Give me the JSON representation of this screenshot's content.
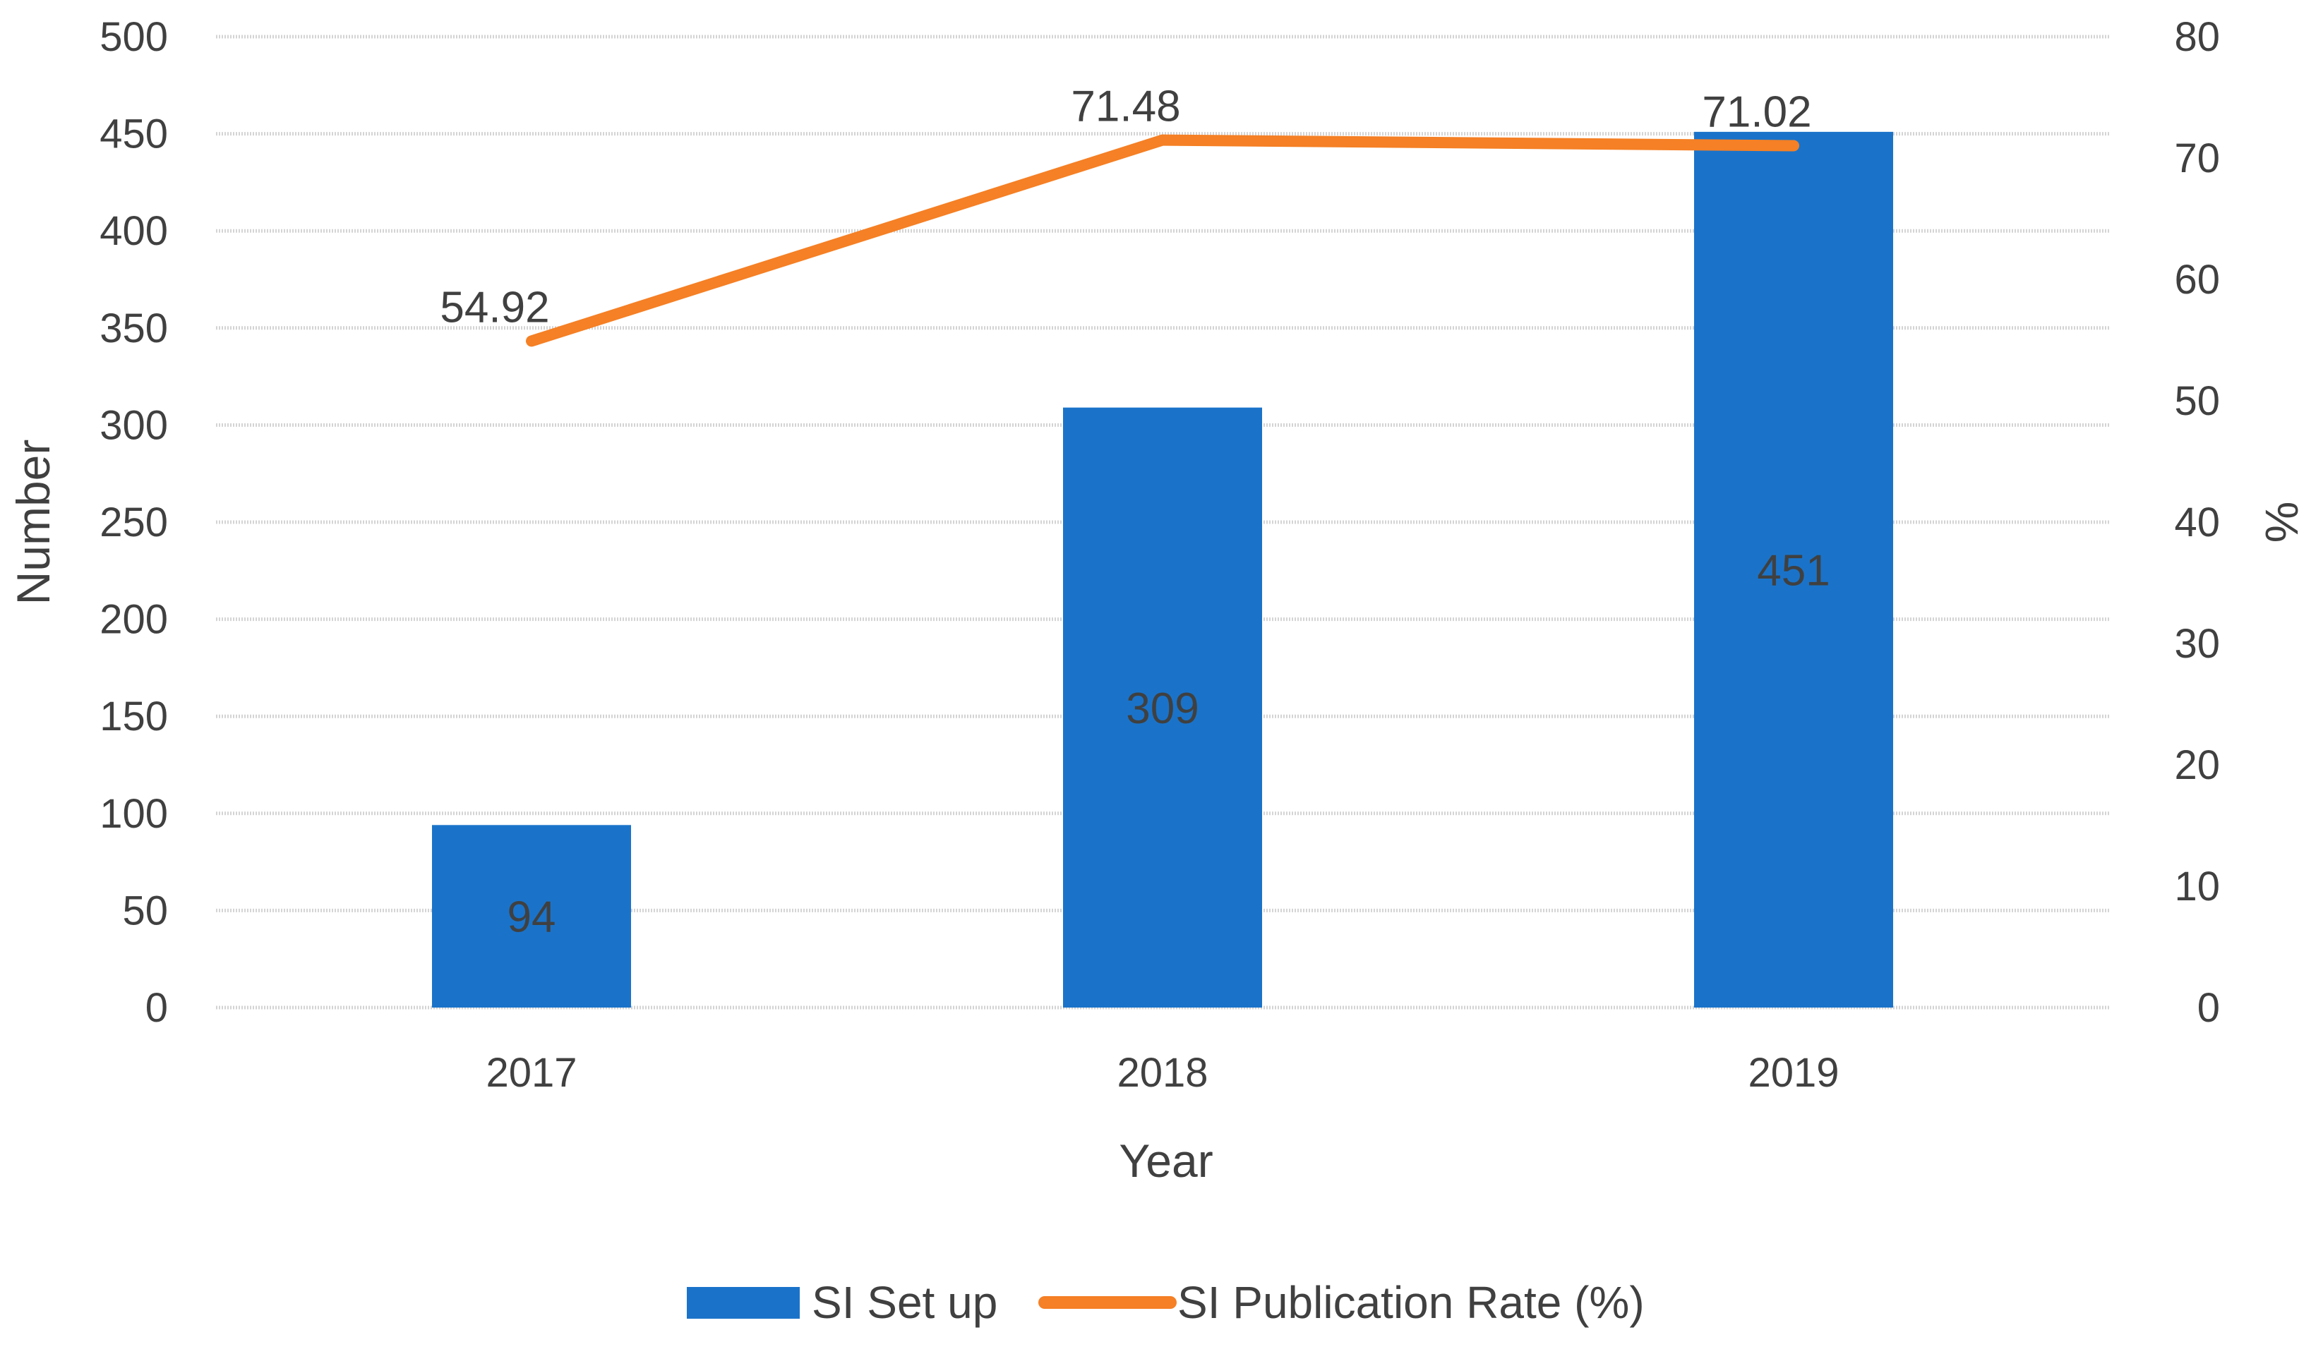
{
  "chart_data": {
    "type": "bar+line",
    "categories": [
      "2017",
      "2018",
      "2019"
    ],
    "xlabel": "Year",
    "ylabel_left": "Number",
    "ylabel_right": "%",
    "ylim_left": [
      0,
      500
    ],
    "yticks_left": [
      "0",
      "50",
      "100",
      "150",
      "200",
      "250",
      "300",
      "350",
      "400",
      "450",
      "500"
    ],
    "ylim_right": [
      0,
      80
    ],
    "yticks_right": [
      "0",
      "10",
      "20",
      "30",
      "40",
      "50",
      "60",
      "70",
      "80"
    ],
    "grid": true,
    "legend_position": "bottom",
    "series": [
      {
        "name": "SI Set up",
        "type": "bar",
        "axis": "left",
        "values": [
          94,
          309,
          451
        ],
        "labels": [
          "94",
          "309",
          "451"
        ],
        "color": "#1a73c9"
      },
      {
        "name": "SI Publication Rate (%)",
        "type": "line",
        "axis": "right",
        "values": [
          54.92,
          71.48,
          71.02
        ],
        "labels": [
          "54.92",
          "71.48",
          "71.02"
        ],
        "color": "#f58025"
      }
    ]
  }
}
